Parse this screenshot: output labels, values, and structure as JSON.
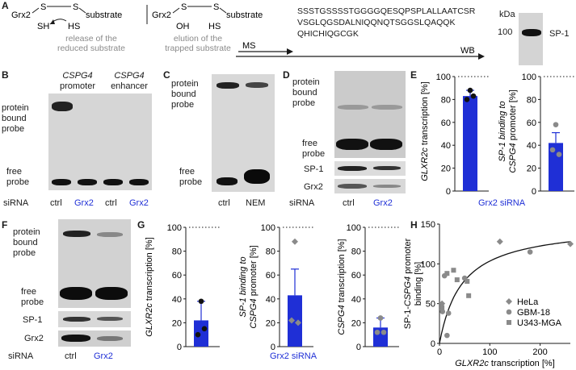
{
  "panel_letters": [
    "A",
    "B",
    "C",
    "D",
    "E",
    "F",
    "G",
    "H"
  ],
  "panelA": {
    "struct1": {
      "grx": "Grx2",
      "s1": "S",
      "s2": "S",
      "sh": "SH",
      "hs": "HS",
      "sub": "substrate"
    },
    "struct2": {
      "grx": "Grx2",
      "s1": "S",
      "s2": "S",
      "oh": "OH",
      "hs": "HS",
      "sub": "substrate"
    },
    "caption1": [
      "release of the",
      "reduced substrate"
    ],
    "caption2": [
      "elution of the",
      "trapped substrate"
    ],
    "sequence": [
      "SSSTGSSSSTGGGGQESQPSPLALLAATCSR",
      "VSGLQGSDALNIQQNQTSGGSLQAQQK",
      "QHICHIQGCGK"
    ],
    "ms_label": "MS",
    "wb_label": "WB",
    "kda_label": "kDa",
    "marker": "100",
    "band_label": "SP-1"
  },
  "panelB": {
    "titles": [
      [
        "CSPG4",
        "promoter"
      ],
      [
        "CSPG4",
        "enhancer"
      ]
    ],
    "side_labels": {
      "bound": [
        "protein",
        "bound",
        "probe"
      ],
      "free": [
        "free",
        "probe"
      ]
    },
    "sirna_label": "siRNA",
    "lanes": [
      "ctrl",
      "Grx2",
      "ctrl",
      "Grx2"
    ]
  },
  "panelC": {
    "side_labels": {
      "bound": [
        "protein",
        "bound",
        "probe"
      ],
      "free": [
        "free",
        "probe"
      ]
    },
    "lanes": [
      "ctrl",
      "NEM"
    ]
  },
  "panelD": {
    "side_labels": {
      "bound": [
        "protein",
        "bound",
        "probe"
      ],
      "free": [
        "free",
        "probe"
      ],
      "sp1": "SP-1",
      "grx2": "Grx2"
    },
    "sirna_label": "siRNA",
    "lanes": [
      "ctrl",
      "Grx2"
    ]
  },
  "panelE": {
    "footer": "Grx2 siRNA",
    "charts": [
      {
        "ylabel": [
          "GLXR2c",
          " transcription [%]"
        ],
        "ylim": [
          0,
          100
        ],
        "ticks": [
          0,
          20,
          40,
          60,
          80,
          100
        ],
        "mean": 83,
        "sem": 5,
        "points": [
          88,
          80,
          83
        ]
      },
      {
        "ylabel_lines": [
          [
            "SP-1 binding to",
            ""
          ],
          [
            "CSPG4",
            " promoter [%]"
          ]
        ],
        "ylim": [
          0,
          100
        ],
        "ticks": [
          0,
          20,
          40,
          60,
          80,
          100
        ],
        "mean": 42,
        "sem": 9,
        "points": [
          58,
          36,
          32
        ]
      }
    ]
  },
  "panelF": {
    "side_labels": {
      "bound": [
        "protein",
        "bound",
        "probe"
      ],
      "free": [
        "free",
        "probe"
      ],
      "sp1": "SP-1",
      "grx2": "Grx2"
    },
    "sirna_label": "siRNA",
    "lanes": [
      "ctrl",
      "Grx2"
    ]
  },
  "panelG": {
    "footer": "Grx2 siRNA",
    "charts": [
      {
        "ylabel_lines": [
          [
            "GLXR2c",
            " transcription [%]"
          ]
        ],
        "ylim": [
          0,
          100
        ],
        "ticks": [
          0,
          20,
          40,
          60,
          80,
          100
        ],
        "mean": 22,
        "sem": 16,
        "points": [
          38,
          10,
          15
        ],
        "marker": "circle"
      },
      {
        "ylabel_lines": [
          [
            "SP-1 binding to",
            ""
          ],
          [
            "CSPG4",
            " promoter [%]"
          ]
        ],
        "ylim": [
          0,
          100
        ],
        "ticks": [
          0,
          20,
          40,
          60,
          80,
          100
        ],
        "mean": 43,
        "sem": 22,
        "points": [
          88,
          22,
          20
        ],
        "marker": "diamond"
      },
      {
        "ylabel_lines": [
          [
            "CSPG4",
            " transcription [%]"
          ]
        ],
        "ylim": [
          0,
          100
        ],
        "ticks": [
          0,
          20,
          40,
          60,
          80,
          100
        ],
        "mean": 16,
        "sem": 8,
        "points": [
          24,
          12,
          12
        ],
        "marker": "circle"
      }
    ]
  },
  "chart_data": {
    "type": "scatter",
    "xlabel": [
      "GLXR2c",
      " transcription [%]"
    ],
    "ylabel": [
      "SP-1-",
      "CSPG4",
      " promoter",
      "binding [%]"
    ],
    "xlim": [
      0,
      260
    ],
    "ylim": [
      0,
      150
    ],
    "xticks": [
      0,
      100,
      200
    ],
    "yticks": [
      0,
      50,
      100,
      150
    ],
    "legend_position": "bottom-right",
    "series": [
      {
        "name": "HeLa",
        "marker": "diamond",
        "points": [
          [
            5,
            50
          ],
          [
            120,
            128
          ],
          [
            260,
            125
          ]
        ]
      },
      {
        "name": "GBM-18",
        "marker": "circle",
        "points": [
          [
            6,
            40
          ],
          [
            10,
            85
          ],
          [
            15,
            10
          ],
          [
            18,
            38
          ],
          [
            50,
            82
          ],
          [
            180,
            115
          ]
        ]
      },
      {
        "name": "U343-MGA",
        "marker": "square",
        "points": [
          [
            5,
            45
          ],
          [
            15,
            88
          ],
          [
            28,
            92
          ],
          [
            35,
            80
          ],
          [
            58,
            60
          ],
          [
            55,
            78
          ]
        ]
      }
    ],
    "fit_curve": {
      "type": "hyperbolic",
      "vmax": 150,
      "km": 45
    }
  }
}
